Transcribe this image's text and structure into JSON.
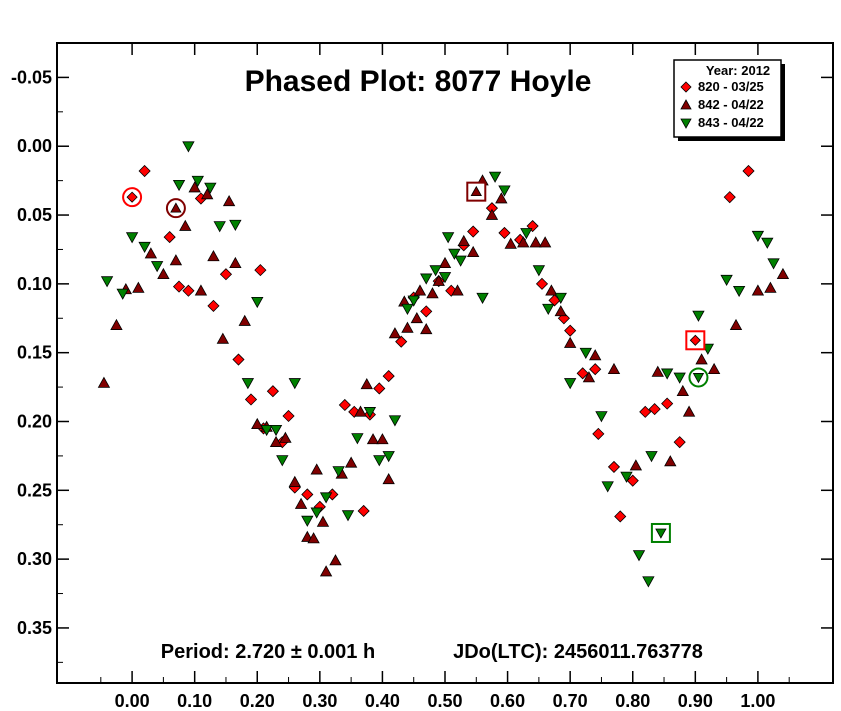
{
  "chart_data": {
    "type": "scatter",
    "title": "Phased Plot: 8077 Hoyle",
    "xlabel": "",
    "ylabel": "",
    "xlim": [
      -0.12,
      1.12
    ],
    "ylim": [
      -0.075,
      0.39
    ],
    "y_inverted": true,
    "grid": false,
    "legend_position": "top-right",
    "x_ticks": [
      "0.00",
      "0.10",
      "0.20",
      "0.30",
      "0.40",
      "0.50",
      "0.60",
      "0.70",
      "0.80",
      "0.90",
      "1.00"
    ],
    "y_ticks": [
      "-0.05",
      "0.00",
      "0.05",
      "0.10",
      "0.15",
      "0.20",
      "0.25",
      "0.30",
      "0.35"
    ],
    "legend_title": "Year: 2012",
    "annotations": {
      "period": "Period: 2.720 ± 0.001 h",
      "jdo": "JDo(LTC): 2456011.763778"
    },
    "series": [
      {
        "name": "820 - 03/25",
        "marker": "diamond",
        "color": "#ff0000",
        "points": [
          [
            0.02,
            0.018
          ],
          [
            0.06,
            0.066
          ],
          [
            0.075,
            0.102
          ],
          [
            0.09,
            0.105
          ],
          [
            0.11,
            0.038
          ],
          [
            0.13,
            0.116
          ],
          [
            0.15,
            0.093
          ],
          [
            0.17,
            0.155
          ],
          [
            0.19,
            0.184
          ],
          [
            0.205,
            0.09
          ],
          [
            0.21,
            0.205
          ],
          [
            0.225,
            0.178
          ],
          [
            0.24,
            0.215
          ],
          [
            0.25,
            0.196
          ],
          [
            0.26,
            0.248
          ],
          [
            0.28,
            0.253
          ],
          [
            0.3,
            0.262
          ],
          [
            0.32,
            0.253
          ],
          [
            0.34,
            0.188
          ],
          [
            0.355,
            0.193
          ],
          [
            0.37,
            0.265
          ],
          [
            0.38,
            0.195
          ],
          [
            0.395,
            0.176
          ],
          [
            0.41,
            0.167
          ],
          [
            0.43,
            0.142
          ],
          [
            0.45,
            0.11
          ],
          [
            0.47,
            0.12
          ],
          [
            0.49,
            0.098
          ],
          [
            0.51,
            0.105
          ],
          [
            0.53,
            0.072
          ],
          [
            0.545,
            0.062
          ],
          [
            0.575,
            0.045
          ],
          [
            0.595,
            0.063
          ],
          [
            0.62,
            0.068
          ],
          [
            0.64,
            0.058
          ],
          [
            0.655,
            0.1
          ],
          [
            0.675,
            0.112
          ],
          [
            0.69,
            0.125
          ],
          [
            0.7,
            0.134
          ],
          [
            0.72,
            0.165
          ],
          [
            0.74,
            0.162
          ],
          [
            0.745,
            0.209
          ],
          [
            0.77,
            0.233
          ],
          [
            0.78,
            0.269
          ],
          [
            0.8,
            0.243
          ],
          [
            0.82,
            0.193
          ],
          [
            0.835,
            0.191
          ],
          [
            0.855,
            0.187
          ],
          [
            0.875,
            0.215
          ],
          [
            0.955,
            0.037
          ],
          [
            0.985,
            0.018
          ]
        ]
      },
      {
        "name": "842 - 04/22",
        "marker": "triangle-up",
        "color": "#800000",
        "points": [
          [
            -0.045,
            0.172
          ],
          [
            -0.025,
            0.13
          ],
          [
            -0.01,
            0.104
          ],
          [
            0.01,
            0.103
          ],
          [
            0.03,
            0.078
          ],
          [
            0.05,
            0.093
          ],
          [
            0.07,
            0.083
          ],
          [
            0.085,
            0.058
          ],
          [
            0.1,
            0.03
          ],
          [
            0.11,
            0.105
          ],
          [
            0.12,
            0.035
          ],
          [
            0.13,
            0.08
          ],
          [
            0.145,
            0.14
          ],
          [
            0.155,
            0.04
          ],
          [
            0.165,
            0.085
          ],
          [
            0.18,
            0.127
          ],
          [
            0.2,
            0.202
          ],
          [
            0.215,
            0.204
          ],
          [
            0.23,
            0.215
          ],
          [
            0.245,
            0.212
          ],
          [
            0.26,
            0.244
          ],
          [
            0.27,
            0.26
          ],
          [
            0.28,
            0.284
          ],
          [
            0.29,
            0.285
          ],
          [
            0.295,
            0.235
          ],
          [
            0.305,
            0.273
          ],
          [
            0.31,
            0.309
          ],
          [
            0.325,
            0.301
          ],
          [
            0.335,
            0.238
          ],
          [
            0.35,
            0.23
          ],
          [
            0.365,
            0.193
          ],
          [
            0.375,
            0.173
          ],
          [
            0.385,
            0.213
          ],
          [
            0.4,
            0.213
          ],
          [
            0.41,
            0.242
          ],
          [
            0.42,
            0.136
          ],
          [
            0.435,
            0.113
          ],
          [
            0.44,
            0.132
          ],
          [
            0.455,
            0.125
          ],
          [
            0.46,
            0.105
          ],
          [
            0.47,
            0.133
          ],
          [
            0.48,
            0.107
          ],
          [
            0.49,
            0.098
          ],
          [
            0.5,
            0.085
          ],
          [
            0.52,
            0.105
          ],
          [
            0.53,
            0.069
          ],
          [
            0.545,
            0.077
          ],
          [
            0.56,
            0.025
          ],
          [
            0.575,
            0.05
          ],
          [
            0.59,
            0.038
          ],
          [
            0.605,
            0.071
          ],
          [
            0.625,
            0.07
          ],
          [
            0.645,
            0.07
          ],
          [
            0.66,
            0.07
          ],
          [
            0.67,
            0.105
          ],
          [
            0.685,
            0.12
          ],
          [
            0.7,
            0.143
          ],
          [
            0.73,
            0.168
          ],
          [
            0.74,
            0.152
          ],
          [
            0.77,
            0.162
          ],
          [
            0.805,
            0.232
          ],
          [
            0.84,
            0.164
          ],
          [
            0.86,
            0.229
          ],
          [
            0.88,
            0.178
          ],
          [
            0.89,
            0.193
          ],
          [
            0.91,
            0.155
          ],
          [
            0.93,
            0.162
          ],
          [
            0.965,
            0.13
          ],
          [
            1.0,
            0.105
          ],
          [
            1.02,
            0.103
          ],
          [
            1.04,
            0.093
          ]
        ]
      },
      {
        "name": "843 - 04/22",
        "marker": "triangle-down",
        "color": "#008000",
        "points": [
          [
            -0.04,
            0.098
          ],
          [
            -0.015,
            0.107
          ],
          [
            0.0,
            0.066
          ],
          [
            0.02,
            0.073
          ],
          [
            0.04,
            0.087
          ],
          [
            0.075,
            0.028
          ],
          [
            0.09,
            0.0
          ],
          [
            0.105,
            0.025
          ],
          [
            0.125,
            0.03
          ],
          [
            0.14,
            0.058
          ],
          [
            0.165,
            0.057
          ],
          [
            0.185,
            0.172
          ],
          [
            0.2,
            0.113
          ],
          [
            0.215,
            0.206
          ],
          [
            0.23,
            0.206
          ],
          [
            0.24,
            0.228
          ],
          [
            0.26,
            0.172
          ],
          [
            0.28,
            0.272
          ],
          [
            0.295,
            0.266
          ],
          [
            0.31,
            0.255
          ],
          [
            0.33,
            0.236
          ],
          [
            0.345,
            0.268
          ],
          [
            0.36,
            0.212
          ],
          [
            0.38,
            0.193
          ],
          [
            0.395,
            0.228
          ],
          [
            0.41,
            0.225
          ],
          [
            0.42,
            0.199
          ],
          [
            0.44,
            0.118
          ],
          [
            0.45,
            0.112
          ],
          [
            0.47,
            0.096
          ],
          [
            0.485,
            0.09
          ],
          [
            0.5,
            0.095
          ],
          [
            0.505,
            0.066
          ],
          [
            0.515,
            0.078
          ],
          [
            0.525,
            0.083
          ],
          [
            0.56,
            0.11
          ],
          [
            0.58,
            0.022
          ],
          [
            0.595,
            0.032
          ],
          [
            0.63,
            0.063
          ],
          [
            0.65,
            0.09
          ],
          [
            0.665,
            0.118
          ],
          [
            0.685,
            0.11
          ],
          [
            0.7,
            0.172
          ],
          [
            0.725,
            0.15
          ],
          [
            0.75,
            0.196
          ],
          [
            0.76,
            0.247
          ],
          [
            0.79,
            0.24
          ],
          [
            0.81,
            0.297
          ],
          [
            0.825,
            0.316
          ],
          [
            0.83,
            0.225
          ],
          [
            0.855,
            0.165
          ],
          [
            0.875,
            0.168
          ],
          [
            0.905,
            0.123
          ],
          [
            0.92,
            0.147
          ],
          [
            0.95,
            0.097
          ],
          [
            0.97,
            0.105
          ],
          [
            1.0,
            0.065
          ],
          [
            1.015,
            0.07
          ],
          [
            1.025,
            0.085
          ]
        ]
      }
    ],
    "highlighted_points": [
      {
        "series": "820 - 03/25",
        "shape": "circle",
        "x": 0.0,
        "y": 0.037
      },
      {
        "series": "842 - 04/22",
        "shape": "circle",
        "x": 0.07,
        "y": 0.045
      },
      {
        "series": "842 - 04/22",
        "shape": "square",
        "x": 0.55,
        "y": 0.033
      },
      {
        "series": "820 - 03/25",
        "shape": "square",
        "x": 0.9,
        "y": 0.141
      },
      {
        "series": "843 - 04/22",
        "shape": "circle",
        "x": 0.905,
        "y": 0.168
      },
      {
        "series": "843 - 04/22",
        "shape": "square",
        "x": 0.845,
        "y": 0.281
      }
    ]
  }
}
